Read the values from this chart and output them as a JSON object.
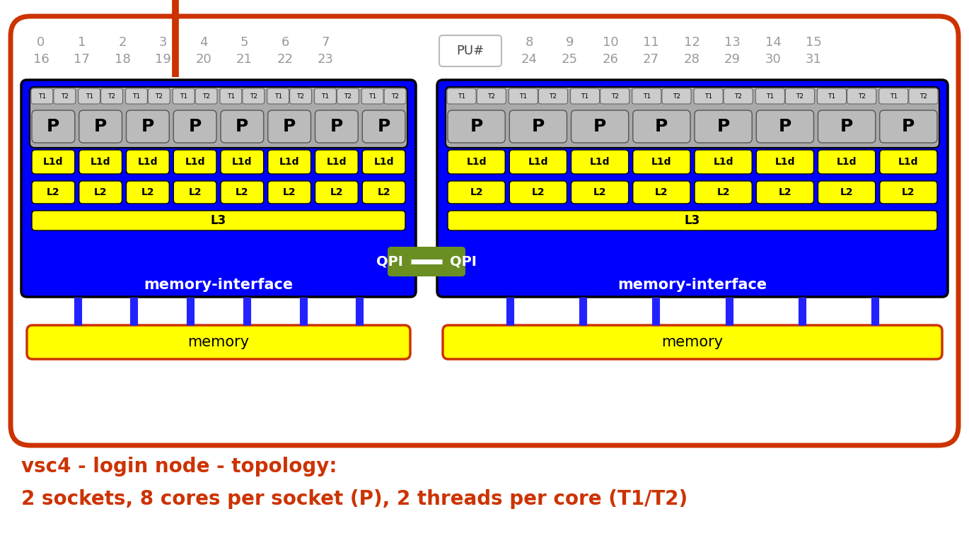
{
  "title_line1": "vsc4 - login node - topology:",
  "title_line2": "2 sockets, 8 cores per socket (P), 2 threads per core (T1/T2)",
  "title_color": "#cc3300",
  "bg_color": "#ffffff",
  "outer_border_color": "#cc3300",
  "socket_bg_color": "#0000ff",
  "cache_yellow": "#ffff00",
  "memory_yellow": "#ffff00",
  "qpi_green": "#6b8e23",
  "separator_line_color": "#cc3300",
  "gray_text": "#999999",
  "fig_width": 13.7,
  "fig_height": 7.78,
  "pu_top1": [
    "0",
    "1",
    "2",
    "3",
    "4",
    "5",
    "6",
    "7"
  ],
  "pu_bot1": [
    "16",
    "17",
    "18",
    "19",
    "20",
    "21",
    "22",
    "23"
  ],
  "pu_top2": [
    "8",
    "9",
    "10",
    "11",
    "12",
    "13",
    "14",
    "15"
  ],
  "pu_bot2": [
    "24",
    "25",
    "26",
    "27",
    "28",
    "29",
    "30",
    "31"
  ]
}
